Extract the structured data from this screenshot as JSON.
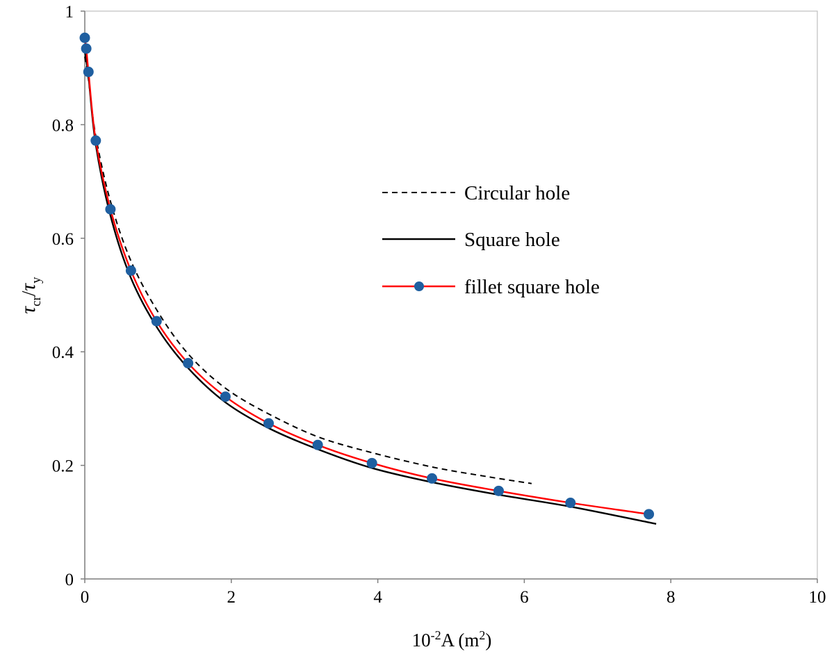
{
  "chart_data": {
    "type": "line",
    "title": "",
    "xlabel": {
      "prefix": "10",
      "sup": "-2",
      "main": "A (m",
      "sup2": "2",
      "suffix": ")"
    },
    "ylabel": {
      "tau1": "τ",
      "sub1": "cr",
      "slash": "/",
      "tau2": "τ",
      "sub2": "y"
    },
    "xlim": [
      0,
      10
    ],
    "ylim": [
      0,
      1
    ],
    "xticks": [
      "0",
      "2",
      "4",
      "6",
      "8",
      "10"
    ],
    "yticks": [
      "0",
      "0.2",
      "0.4",
      "0.6",
      "0.8",
      "1"
    ],
    "legend_position": "center-right",
    "series": [
      {
        "name": "Circular hole",
        "style": "dashed",
        "color": "#000000",
        "x": [
          0.0,
          0.05,
          0.15,
          0.35,
          0.63,
          1.0,
          1.42,
          1.93,
          2.52,
          3.19,
          3.93,
          4.75,
          5.5,
          6.1
        ],
        "y": [
          0.92,
          0.88,
          0.78,
          0.665,
          0.56,
          0.47,
          0.395,
          0.335,
          0.29,
          0.25,
          0.222,
          0.197,
          0.18,
          0.168
        ]
      },
      {
        "name": "Square hole",
        "style": "solid",
        "color": "#000000",
        "x": [
          0.0,
          0.05,
          0.15,
          0.35,
          0.63,
          1.0,
          1.42,
          1.93,
          2.52,
          3.19,
          3.93,
          4.75,
          5.66,
          6.64,
          7.8
        ],
        "y": [
          0.93,
          0.885,
          0.765,
          0.64,
          0.53,
          0.44,
          0.37,
          0.31,
          0.265,
          0.228,
          0.195,
          0.17,
          0.148,
          0.127,
          0.097
        ]
      },
      {
        "name": "fillet square hole",
        "style": "solid-markers",
        "color": "#ff0000",
        "marker_color": "#1f5fa0",
        "x": [
          0.0,
          0.02,
          0.05,
          0.15,
          0.35,
          0.63,
          0.98,
          1.41,
          1.92,
          2.51,
          3.18,
          3.92,
          4.74,
          5.65,
          6.63,
          7.7
        ],
        "y": [
          0.953,
          0.934,
          0.893,
          0.772,
          0.651,
          0.543,
          0.454,
          0.38,
          0.321,
          0.274,
          0.236,
          0.204,
          0.177,
          0.155,
          0.134,
          0.114
        ]
      }
    ]
  }
}
